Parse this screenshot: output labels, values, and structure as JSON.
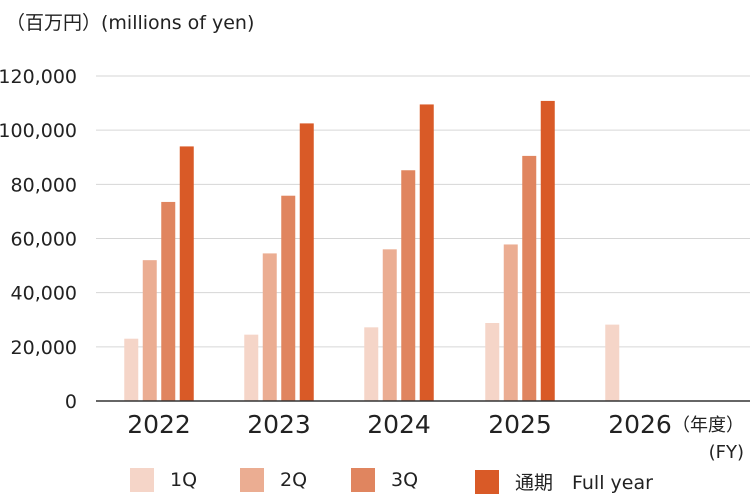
{
  "unit_label": "（百万円）(millions of yen)",
  "legend_items": [
    {
      "label": "1Q",
      "color": "#f5d5c8"
    },
    {
      "label": "2Q",
      "color": "#ebad92"
    },
    {
      "label": "3Q",
      "color": "#e0855f"
    },
    {
      "label": "通期　Full year",
      "color": "#d95a27"
    }
  ],
  "chart_data": {
    "type": "bar",
    "categories": [
      "2022",
      "2023",
      "2024",
      "2025",
      "2026"
    ],
    "series": [
      {
        "name": "1Q",
        "color": "#f5d5c8",
        "values": [
          23000,
          24500,
          27200,
          28800,
          28200
        ]
      },
      {
        "name": "2Q",
        "color": "#ebad92",
        "values": [
          52000,
          54500,
          56000,
          57800,
          null
        ]
      },
      {
        "name": "3Q",
        "color": "#e0855f",
        "values": [
          73500,
          75800,
          85200,
          90500,
          null
        ]
      },
      {
        "name": "通期　Full year",
        "color": "#d95a27",
        "values": [
          94000,
          102500,
          109500,
          110800,
          null
        ]
      }
    ],
    "yticks": [
      "0",
      "20,000",
      "40,000",
      "60,000",
      "80,000",
      "100,000",
      "120,000"
    ],
    "ylim": [
      0,
      120000
    ],
    "x_axis_unit": [
      "（年度）",
      "(FY)"
    ],
    "grid": true,
    "legend_position": "bottom"
  }
}
